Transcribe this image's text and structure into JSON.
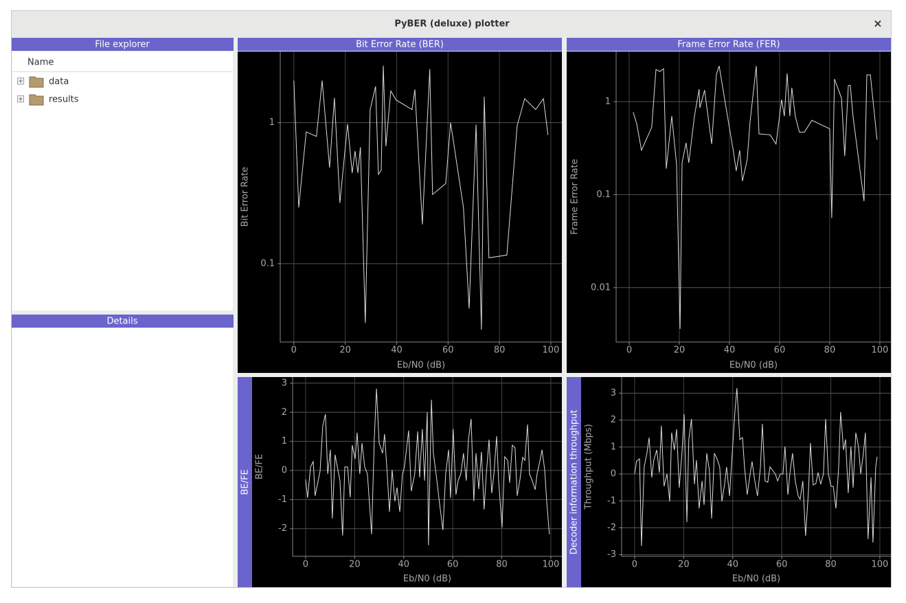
{
  "window": {
    "title": "PyBER (deluxe) plotter",
    "close": "×"
  },
  "file_explorer": {
    "title": "File explorer",
    "column": "Name",
    "items": [
      "data",
      "results"
    ]
  },
  "details": {
    "title": "Details"
  },
  "chart_data": [
    {
      "type": "line",
      "title": "Bit Error Rate (BER)",
      "xlabel": "Eb/N0 (dB)",
      "ylabel": "Bit Error Rate",
      "log_y": true,
      "grid": true,
      "color": "#dddddd",
      "xlim": [
        -5.3,
        104.3
      ],
      "xticks": [
        0,
        20,
        40,
        60,
        80,
        100
      ],
      "ylim": [
        0.0278,
        3.2
      ],
      "yticks": [
        0.1,
        1
      ],
      "x": [
        0,
        1.9,
        4.8,
        8.8,
        11,
        13.9,
        15.8,
        17.9,
        20.9,
        22.7,
        23.8,
        24.9,
        25.9,
        27.8,
        29.7,
        31.8,
        32.9,
        34,
        34.8,
        35.8,
        37.7,
        39.8,
        46,
        47.1,
        50,
        52.9,
        54,
        59.1,
        61,
        66,
        68.2,
        70.9,
        73,
        74.1,
        75.9,
        82.9,
        86.9,
        89.8,
        94.1,
        97.1,
        98.9
      ],
      "values": [
        1.99,
        0.25,
        0.86,
        0.8,
        1.99,
        0.48,
        1.5,
        0.27,
        0.98,
        0.44,
        0.63,
        0.44,
        0.67,
        0.038,
        1.24,
        1.81,
        0.43,
        0.46,
        2.54,
        0.68,
        1.68,
        1.45,
        1.24,
        1.72,
        0.19,
        2.4,
        0.31,
        0.37,
        1,
        0.25,
        0.048,
        0.97,
        0.034,
        1.53,
        0.11,
        0.115,
        0.95,
        1.48,
        1.24,
        1.48,
        0.82
      ]
    },
    {
      "type": "line",
      "title": "Frame Error Rate (FER)",
      "xlabel": "Eb/N0 (dB)",
      "ylabel": "Frame Error Rate",
      "log_y": true,
      "grid": true,
      "color": "#dddddd",
      "xlim": [
        -5.2,
        104.4
      ],
      "xticks": [
        0,
        20,
        40,
        60,
        80,
        100
      ],
      "ylim": [
        0.0026,
        3.46
      ],
      "yticks": [
        0.01,
        0.1,
        1
      ],
      "x": [
        1.6,
        3,
        4.9,
        9,
        10.7,
        12.3,
        13.7,
        14.8,
        17,
        18.9,
        20.3,
        21.1,
        22.7,
        23.8,
        26,
        27.9,
        28.2,
        30.1,
        32.9,
        34.8,
        35.9,
        38.6,
        41.6,
        42.7,
        44.1,
        45.2,
        47.1,
        48.2,
        50.7,
        51.8,
        56.2,
        58.6,
        60.8,
        61.9,
        63,
        64.1,
        64.9,
        66.3,
        67.9,
        69.9,
        72.9,
        80,
        80.8,
        81.9,
        84.7,
        86,
        87.4,
        88.2,
        89.3,
        93.7,
        94.8,
        96.2,
        98.4,
        98.9
      ],
      "values": [
        0.77,
        0.58,
        0.3,
        0.53,
        2.22,
        2.11,
        2.26,
        0.19,
        0.7,
        0.21,
        0.0036,
        0.22,
        0.36,
        0.22,
        0.69,
        1.36,
        0.86,
        1.33,
        0.35,
        1.97,
        2.42,
        0.87,
        0.29,
        0.18,
        0.3,
        0.14,
        0.24,
        0.6,
        2.42,
        0.45,
        0.44,
        0.35,
        1.05,
        0.7,
        2.01,
        0.7,
        1.41,
        0.69,
        0.47,
        0.47,
        0.63,
        0.51,
        0.056,
        1.75,
        1.09,
        0.26,
        1.48,
        1.5,
        0.69,
        0.085,
        1.94,
        1.94,
        0.52,
        0.39
      ]
    },
    {
      "type": "line",
      "side_title": "BE/FE",
      "xlabel": "Eb/N0 (dB)",
      "ylabel": "BE/FE",
      "log_y": false,
      "grid": true,
      "color": "#dddddd",
      "xlim": [
        -5.3,
        104.5
      ],
      "xticks": [
        0,
        20,
        40,
        60,
        80,
        100
      ],
      "ylim": [
        -2.95,
        3.21
      ],
      "yticks": [
        -2,
        -1,
        0,
        1,
        2,
        3
      ],
      "x": [
        0,
        0.8,
        2,
        3.1,
        3.9,
        5.9,
        7,
        8.1,
        9,
        10.1,
        10.9,
        12,
        14,
        15.1,
        16,
        17.1,
        18.2,
        19,
        20.2,
        21,
        22.1,
        23,
        24.1,
        25.2,
        26.9,
        28,
        28.9,
        30,
        31.4,
        32.2,
        33.3,
        34.2,
        35.3,
        36.4,
        37.3,
        38.4,
        39.5,
        40.3,
        42,
        43.1,
        44.5,
        45.7,
        46.5,
        47.6,
        48.5,
        49.6,
        50.1,
        51.3,
        52.1,
        53.2,
        54.6,
        56,
        57.1,
        58.3,
        59.1,
        60.2,
        61.3,
        62.2,
        63.3,
        64.4,
        65.5,
        66.4,
        67.5,
        68.6,
        69.5,
        70.6,
        71.7,
        72.8,
        73.7,
        74.8,
        75.9,
        76.8,
        77.9,
        78.7,
        80.1,
        81.2,
        82.4,
        83.2,
        84.3,
        85.4,
        86.3,
        87.4,
        88.5,
        89.4,
        90.5,
        91.3,
        92.4,
        93.6,
        94.4,
        95.5,
        96.4,
        97.5,
        98.3,
        99.4
      ],
      "values": [
        -0.31,
        -0.94,
        0.12,
        0.31,
        -0.87,
        -0.02,
        1.53,
        1.93,
        -0.12,
        0.71,
        -1.65,
        0.54,
        -0.35,
        -2.24,
        0.12,
        0.12,
        -0.92,
        0.87,
        0.4,
        1.3,
        -0.12,
        0.94,
        0.12,
        -0.12,
        -2.19,
        1.06,
        2.81,
        0.94,
        0.59,
        1.25,
        -0.12,
        -1.42,
        0.02,
        -1.06,
        -0.59,
        -1.42,
        -0.12,
        0.12,
        1.37,
        -0.71,
        -0.12,
        1.34,
        -0.24,
        1.42,
        -0.35,
        2,
        -2.57,
        2.43,
        0.59,
        -0.12,
        -1.13,
        -2.05,
        -0.12,
        0.71,
        -0.94,
        1.42,
        -0.83,
        -0.35,
        -0.12,
        0.59,
        -0.35,
        1.06,
        1.77,
        -1.06,
        0.59,
        -0.64,
        0.64,
        -1.34,
        -0.12,
        1.06,
        -0.78,
        -0.12,
        1.18,
        -0.35,
        -1.96,
        0.47,
        0.35,
        -0.42,
        0.87,
        0.78,
        -0.87,
        -0.31,
        0.45,
        0.35,
        1.58,
        -0.12,
        -0.35,
        -0.66,
        -0.12,
        0.31,
        0.71,
        0.02,
        -1.06,
        -2.19
      ]
    },
    {
      "type": "line",
      "side_title": "Decoder information throughput",
      "xlabel": "Eb/N0 (dB)",
      "ylabel": "Throughput (Mbps)",
      "log_y": false,
      "grid": true,
      "color": "#dddddd",
      "xlim": [
        -5.3,
        104.5
      ],
      "xticks": [
        0,
        20,
        40,
        60,
        80,
        100
      ],
      "ylim": [
        -3.06,
        3.6
      ],
      "yticks": [
        -3,
        -2,
        -1,
        0,
        1,
        2,
        3
      ],
      "x": [
        0,
        0.8,
        2,
        2.8,
        3.9,
        5,
        5.9,
        7,
        7.8,
        9,
        10.1,
        10.9,
        12,
        13.2,
        14.3,
        15.1,
        16.2,
        17.1,
        18.2,
        19.3,
        20.2,
        21.3,
        22.1,
        23.2,
        24.4,
        25.2,
        26.3,
        27.5,
        28.3,
        29.4,
        30.5,
        31.4,
        32.5,
        33.6,
        34.7,
        35.6,
        36.7,
        37.5,
        38.7,
        39.8,
        40.9,
        41.7,
        42.9,
        44,
        44.8,
        45.9,
        47.1,
        47.9,
        49,
        50.1,
        51.3,
        52.1,
        53.2,
        54.3,
        55.2,
        56.3,
        57.4,
        58.3,
        59.4,
        60.5,
        61.3,
        62.5,
        63.3,
        64.4,
        65.5,
        66.7,
        67.5,
        68.6,
        69.7,
        70.9,
        71.7,
        72.8,
        73.9,
        74.8,
        75.9,
        77,
        77.9,
        79,
        80.1,
        81,
        82.1,
        83.2,
        84,
        85.2,
        86,
        87.1,
        88.2,
        89.1,
        90.2,
        91.3,
        92.2,
        93.3,
        94.1,
        95.2,
        96.4,
        97.2,
        98.3,
        98.9
      ],
      "values": [
        0,
        0.48,
        0.56,
        -2.68,
        0.26,
        0.77,
        1.35,
        -0.13,
        0.51,
        0.89,
        0.05,
        1.79,
        -0.46,
        0,
        -1.02,
        1.53,
        0.89,
        1.66,
        -0.51,
        0.77,
        2.22,
        -1.79,
        1.28,
        2.04,
        -0.38,
        0.51,
        -1.28,
        -0.26,
        -1.15,
        0.77,
        0.13,
        -1.66,
        0.77,
        0.56,
        0.26,
        -1.02,
        -0.38,
        0.26,
        -0.82,
        0.77,
        2.3,
        3.19,
        1.28,
        1.35,
        0.26,
        -0.77,
        0,
        0.46,
        -0.26,
        -0.82,
        0.26,
        1.86,
        -0.26,
        -0.31,
        0.26,
        0.13,
        0,
        -0.26,
        0,
        0,
        1.02,
        -0.77,
        0,
        0.77,
        -0.26,
        -0.82,
        -0.94,
        -0.26,
        -2.3,
        -0.64,
        1.15,
        -0.41,
        -0.36,
        0.05,
        -0.38,
        0,
        2.04,
        0,
        -0.46,
        -0.46,
        -1.28,
        0.26,
        2.3,
        0.89,
        1.28,
        -0.71,
        1.02,
        -0.51,
        1.53,
        1.02,
        0,
        0.77,
        1.53,
        -2.42,
        -0.13,
        -2.55,
        0.26,
        0.64
      ]
    }
  ]
}
